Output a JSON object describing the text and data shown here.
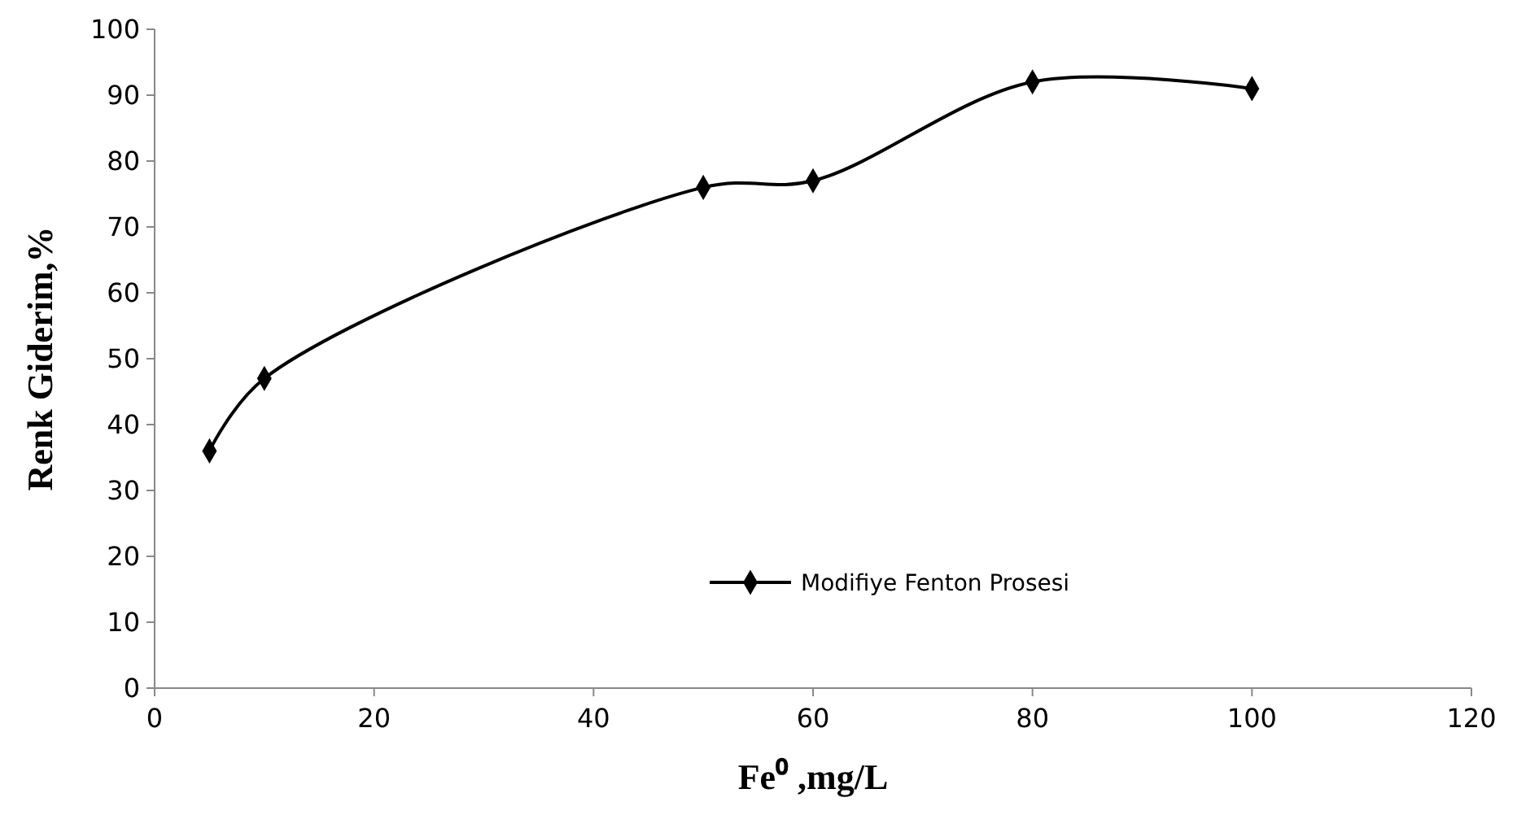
{
  "chart_data": {
    "type": "line",
    "xlabel": "Fe⁰ ,mg/L",
    "ylabel": "Renk Giderim,%",
    "x": [
      5,
      10,
      50,
      60,
      80,
      100
    ],
    "series": [
      {
        "name": "Modifiye Fenton Prosesi",
        "color": "#000000",
        "values": [
          36,
          47,
          76,
          77,
          92,
          91
        ]
      }
    ],
    "xlim": [
      0,
      120
    ],
    "xticks": [
      0,
      20,
      40,
      60,
      80,
      100,
      120
    ],
    "ylim": [
      0,
      100
    ],
    "yticks": [
      0,
      10,
      20,
      30,
      40,
      50,
      60,
      70,
      80,
      90,
      100
    ],
    "grid": false,
    "legend": "bottom",
    "marker": "diamond",
    "line_style": "solid"
  }
}
